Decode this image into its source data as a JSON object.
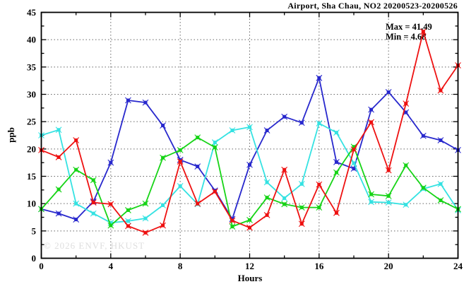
{
  "title": "Airport, Sha Chau, NO2 20200523-20200526",
  "watermark": "© 2026 ENVF, HKUST",
  "annotation": {
    "max_label": "Max = 41.49",
    "min_label": "Min = 4.68"
  },
  "chart_data": {
    "type": "line",
    "title": "Airport, Sha Chau, NO2 20200523-20200526",
    "xlabel": "Hours",
    "ylabel": "ppb",
    "xlim": [
      0,
      24
    ],
    "ylim": [
      0,
      45
    ],
    "x_major_ticks": [
      0,
      4,
      8,
      12,
      16,
      20,
      24
    ],
    "x_minor_ticks": [
      2,
      6,
      10,
      14,
      18,
      22
    ],
    "y_major_ticks": [
      0,
      5,
      10,
      15,
      20,
      25,
      30,
      35,
      40,
      45
    ],
    "y_minor_ticks": [
      2.5,
      7.5,
      12.5,
      17.5,
      22.5,
      27.5,
      32.5,
      37.5,
      42.5
    ],
    "x_grid_at": [
      4,
      8,
      12,
      16,
      20
    ],
    "y_grid_at": [
      5,
      10,
      15,
      20,
      25,
      30,
      35,
      40
    ],
    "grid": true,
    "legend_position": "none",
    "max_value": 41.49,
    "min_value": 4.68,
    "x": [
      0,
      1,
      2,
      3,
      4,
      5,
      6,
      7,
      8,
      9,
      10,
      11,
      12,
      13,
      14,
      15,
      16,
      17,
      18,
      19,
      20,
      21,
      22,
      23,
      24
    ],
    "series": [
      {
        "name": "blue",
        "color": "#2828cd",
        "values": [
          9.0,
          8.2,
          7.1,
          10.4,
          17.5,
          28.9,
          28.5,
          24.3,
          18.0,
          16.8,
          12.4,
          7.2,
          17.1,
          23.4,
          25.9,
          24.8,
          33.0,
          17.6,
          16.4,
          27.2,
          30.4,
          26.7,
          22.4,
          21.6,
          19.8
        ]
      },
      {
        "name": "cyan",
        "color": "#35e2e2",
        "values": [
          22.5,
          23.5,
          10.0,
          8.2,
          6.5,
          6.8,
          7.3,
          9.7,
          13.2,
          9.9,
          21.2,
          23.4,
          24.0,
          13.9,
          11.0,
          13.6,
          24.7,
          23.0,
          17.4,
          10.3,
          10.2,
          9.8,
          12.7,
          13.6,
          8.8
        ]
      },
      {
        "name": "green",
        "color": "#17d417",
        "values": [
          9.0,
          12.6,
          16.2,
          14.3,
          6.0,
          8.8,
          10.0,
          18.4,
          19.8,
          22.1,
          20.3,
          5.8,
          7.0,
          11.1,
          9.9,
          9.3,
          9.3,
          15.7,
          20.4,
          11.7,
          11.4,
          17.0,
          12.9,
          10.6,
          9.0
        ]
      },
      {
        "name": "red",
        "color": "#ee1111",
        "values": [
          19.8,
          18.5,
          21.6,
          10.2,
          9.9,
          5.9,
          4.68,
          6.0,
          17.7,
          10.0,
          12.2,
          6.9,
          5.6,
          7.9,
          16.2,
          6.3,
          13.5,
          8.3,
          19.9,
          24.9,
          16.1,
          28.3,
          41.49,
          30.7,
          35.3
        ]
      }
    ]
  },
  "layout_colors": {
    "axis": "#000000",
    "grid": "#666666",
    "background": "#ffffff"
  }
}
